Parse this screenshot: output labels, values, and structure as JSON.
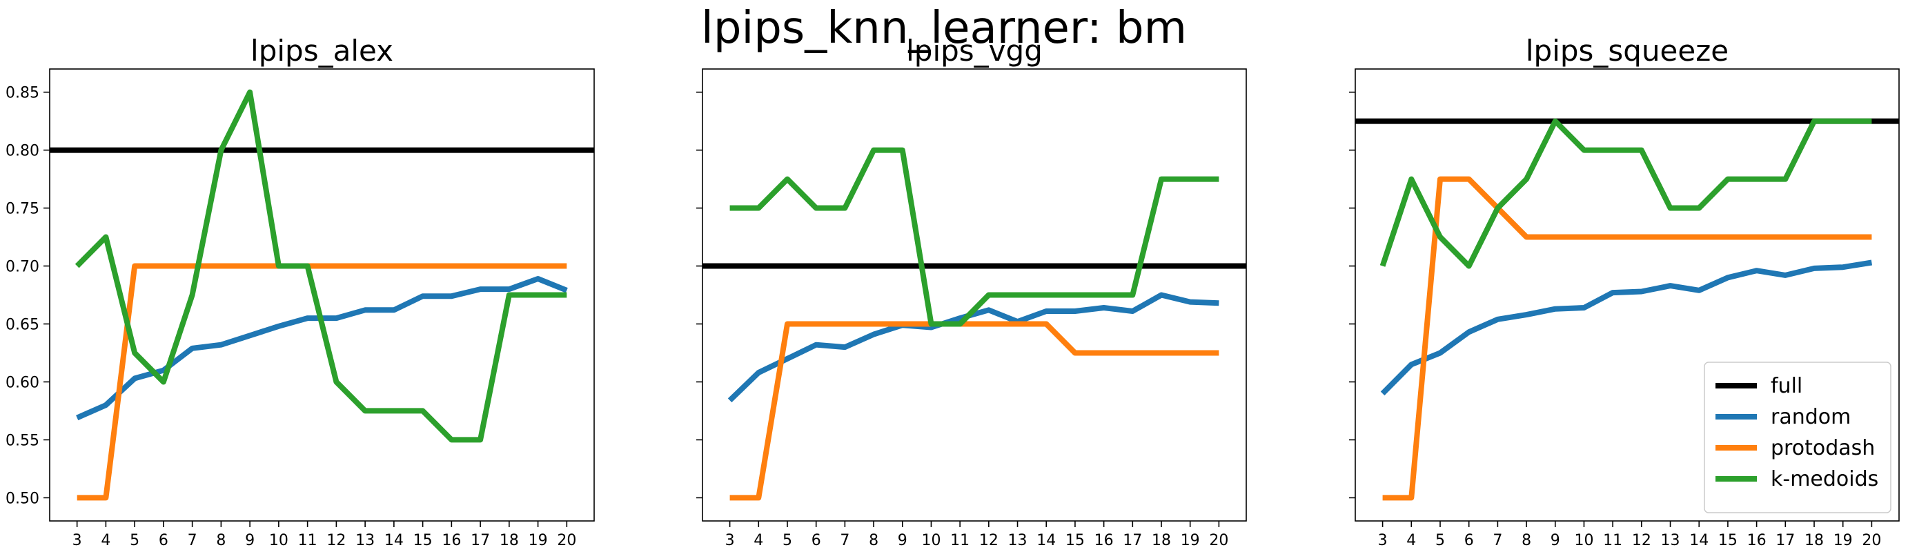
{
  "suptitle": "lpips_knn_learner: bm",
  "colors": {
    "full": "#000000",
    "random": "#1f77b4",
    "protodash": "#ff7f0e",
    "k-medoids": "#2ca02c"
  },
  "chart_data": [
    {
      "type": "line",
      "title": "lpips_alex",
      "x": [
        3,
        4,
        5,
        6,
        7,
        8,
        9,
        10,
        11,
        12,
        13,
        14,
        15,
        16,
        17,
        18,
        19,
        20
      ],
      "ylim": [
        0.48,
        0.87
      ],
      "yticks": [
        0.5,
        0.55,
        0.6,
        0.65,
        0.7,
        0.75,
        0.8,
        0.85
      ],
      "ytick_labels": [
        "0.50",
        "0.55",
        "0.60",
        "0.65",
        "0.70",
        "0.75",
        "0.80",
        "0.85"
      ],
      "full": 0.8,
      "series": [
        {
          "name": "random",
          "values": [
            0.569,
            0.58,
            0.603,
            0.61,
            0.629,
            0.632,
            0.64,
            0.648,
            0.655,
            0.655,
            0.662,
            0.662,
            0.674,
            0.674,
            0.68,
            0.68,
            0.689,
            0.679
          ]
        },
        {
          "name": "protodash",
          "values": [
            0.5,
            0.5,
            0.7,
            0.7,
            0.7,
            0.7,
            0.7,
            0.7,
            0.7,
            0.7,
            0.7,
            0.7,
            0.7,
            0.7,
            0.7,
            0.7,
            0.7,
            0.7
          ]
        },
        {
          "name": "k-medoids",
          "values": [
            0.7,
            0.725,
            0.625,
            0.6,
            0.675,
            0.8,
            0.85,
            0.7,
            0.7,
            0.6,
            0.575,
            0.575,
            0.575,
            0.55,
            0.55,
            0.675,
            0.675,
            0.675
          ]
        }
      ]
    },
    {
      "type": "line",
      "title": "lpips_vgg",
      "x": [
        3,
        4,
        5,
        6,
        7,
        8,
        9,
        10,
        11,
        12,
        13,
        14,
        15,
        16,
        17,
        18,
        19,
        20
      ],
      "ylim": [
        0.48,
        0.87
      ],
      "yticks": [
        0.5,
        0.55,
        0.6,
        0.65,
        0.7,
        0.75,
        0.8,
        0.85
      ],
      "ytick_labels": [],
      "full": 0.7,
      "series": [
        {
          "name": "random",
          "values": [
            0.584,
            0.608,
            0.62,
            0.632,
            0.63,
            0.641,
            0.649,
            0.647,
            0.655,
            0.662,
            0.652,
            0.661,
            0.661,
            0.664,
            0.661,
            0.675,
            0.669,
            0.668
          ]
        },
        {
          "name": "protodash",
          "values": [
            0.5,
            0.5,
            0.65,
            0.65,
            0.65,
            0.65,
            0.65,
            0.65,
            0.65,
            0.65,
            0.65,
            0.65,
            0.625,
            0.625,
            0.625,
            0.625,
            0.625,
            0.625
          ]
        },
        {
          "name": "k-medoids",
          "values": [
            0.75,
            0.75,
            0.775,
            0.75,
            0.75,
            0.8,
            0.8,
            0.65,
            0.65,
            0.675,
            0.675,
            0.675,
            0.675,
            0.675,
            0.675,
            0.775,
            0.775,
            0.775
          ]
        }
      ]
    },
    {
      "type": "line",
      "title": "lpips_squeeze",
      "x": [
        3,
        4,
        5,
        6,
        7,
        8,
        9,
        10,
        11,
        12,
        13,
        14,
        15,
        16,
        17,
        18,
        19,
        20
      ],
      "ylim": [
        0.48,
        0.87
      ],
      "yticks": [
        0.5,
        0.55,
        0.6,
        0.65,
        0.7,
        0.75,
        0.8,
        0.85
      ],
      "ytick_labels": [],
      "full": 0.825,
      "legend": {
        "placement": "lower-right",
        "entries": [
          "full",
          "random",
          "protodash",
          "k-medoids"
        ]
      },
      "series": [
        {
          "name": "random",
          "values": [
            0.59,
            0.615,
            0.625,
            0.643,
            0.654,
            0.658,
            0.663,
            0.664,
            0.677,
            0.678,
            0.683,
            0.679,
            0.69,
            0.696,
            0.692,
            0.698,
            0.699,
            0.703
          ]
        },
        {
          "name": "protodash",
          "values": [
            0.5,
            0.5,
            0.775,
            0.775,
            0.75,
            0.725,
            0.725,
            0.725,
            0.725,
            0.725,
            0.725,
            0.725,
            0.725,
            0.725,
            0.725,
            0.725,
            0.725,
            0.725
          ]
        },
        {
          "name": "k-medoids",
          "values": [
            0.7,
            0.775,
            0.725,
            0.7,
            0.75,
            0.775,
            0.825,
            0.8,
            0.8,
            0.8,
            0.75,
            0.75,
            0.775,
            0.775,
            0.775,
            0.825,
            0.825,
            0.825
          ]
        }
      ]
    }
  ]
}
